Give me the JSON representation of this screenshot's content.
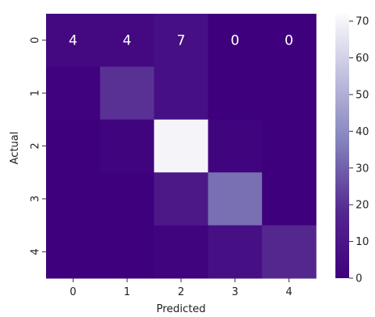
{
  "chart_data": {
    "type": "heatmap",
    "title": "",
    "xlabel": "Predicted",
    "ylabel": "Actual",
    "x_categories": [
      "0",
      "1",
      "2",
      "3",
      "4"
    ],
    "y_categories": [
      "0",
      "1",
      "2",
      "3",
      "4"
    ],
    "values": [
      [
        4,
        4,
        7,
        0,
        0
      ],
      [
        1,
        20,
        7,
        0,
        0
      ],
      [
        0,
        2,
        70,
        2,
        0
      ],
      [
        0,
        0,
        11,
        33,
        0
      ],
      [
        0,
        0,
        2,
        7,
        18
      ]
    ],
    "cell_labels": [
      [
        "4",
        "4",
        "7",
        "0",
        "0"
      ],
      [
        "",
        "",
        "",
        "",
        ""
      ],
      [
        "",
        "",
        "",
        "",
        ""
      ],
      [
        "",
        "",
        "",
        "",
        ""
      ],
      [
        "",
        "",
        "",
        "",
        ""
      ]
    ],
    "colorbar": {
      "range": [
        0,
        72
      ],
      "ticks": [
        "0",
        "10",
        "20",
        "30",
        "40",
        "50",
        "60",
        "70"
      ],
      "colormap": "Purples_r",
      "low_color": "#3f007d",
      "high_color": "#fcfbfd"
    }
  }
}
